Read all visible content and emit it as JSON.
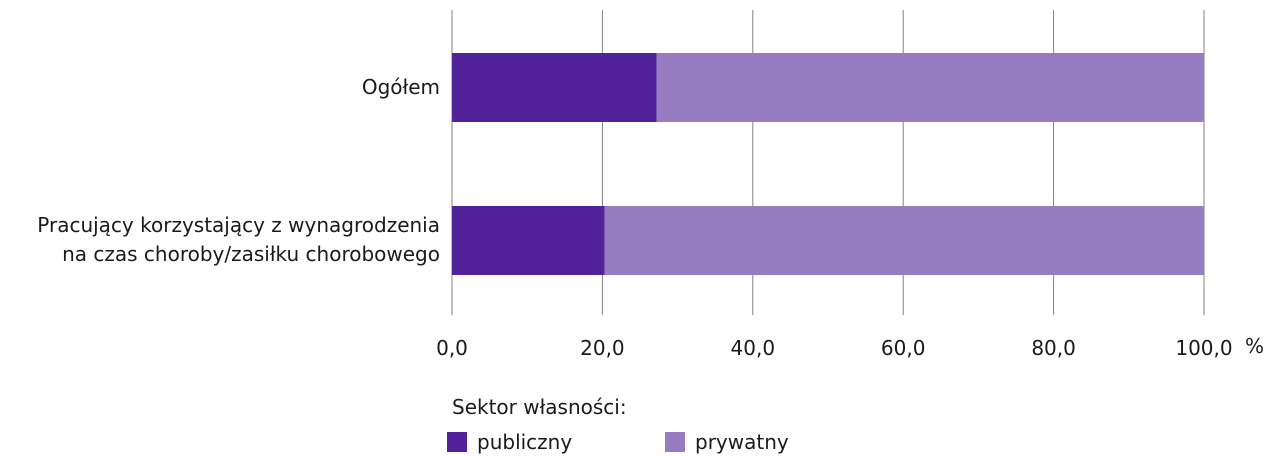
{
  "chart_data": {
    "type": "bar",
    "orientation": "horizontal",
    "stacked": true,
    "categories": [
      "Ogółem",
      "Pracujący korzystający z wynagrodzenia na czas choroby/zasiłku chorobowego"
    ],
    "category_lines": [
      [
        "Ogółem"
      ],
      [
        "Pracujący korzystający z wynagrodzenia",
        "na czas choroby/zasiłku chorobowego"
      ]
    ],
    "series": [
      {
        "name": "publiczny",
        "values": [
          27.2,
          20.3
        ],
        "color": "#51229a"
      },
      {
        "name": "prywatny",
        "values": [
          72.8,
          79.7
        ],
        "color": "#967dc1"
      }
    ],
    "xlim": [
      0,
      100
    ],
    "xticks": [
      "0,0",
      "20,0",
      "40,0",
      "60,0",
      "80,0",
      "100,0"
    ],
    "xlabel": "%",
    "grid": "vertical",
    "legend_title": "Sektor własności:",
    "legend_position": "bottom",
    "gridline_color": "#808080"
  }
}
